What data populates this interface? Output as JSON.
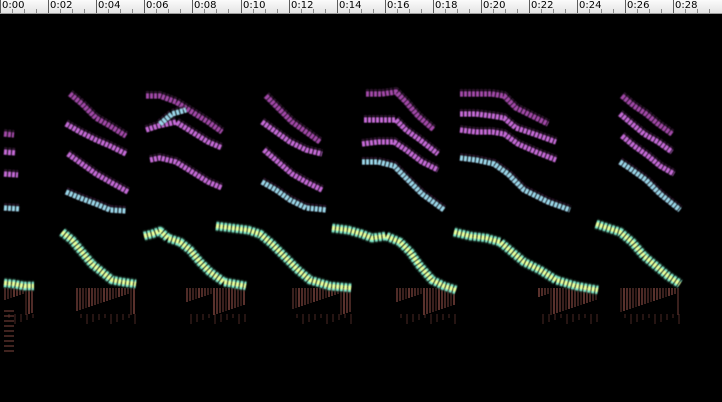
{
  "timeline": {
    "labels": [
      "0:00",
      "0:02",
      "0:04",
      "0:06",
      "0:08",
      "0:10",
      "0:12",
      "0:14",
      "0:16",
      "0:18",
      "0:20",
      "0:22",
      "0:24",
      "0:26",
      "0:28"
    ]
  },
  "spectrogram": {
    "background": "#000000",
    "colors": {
      "fundamental": "#e8ff9a",
      "fundamental_edge": "#7fe8c8",
      "harmonic_low": "#9ad6e8",
      "harmonic_mid": "#c46ad6",
      "harmonic_high": "#a24aa8",
      "noise": "#6a3a34"
    }
  }
}
